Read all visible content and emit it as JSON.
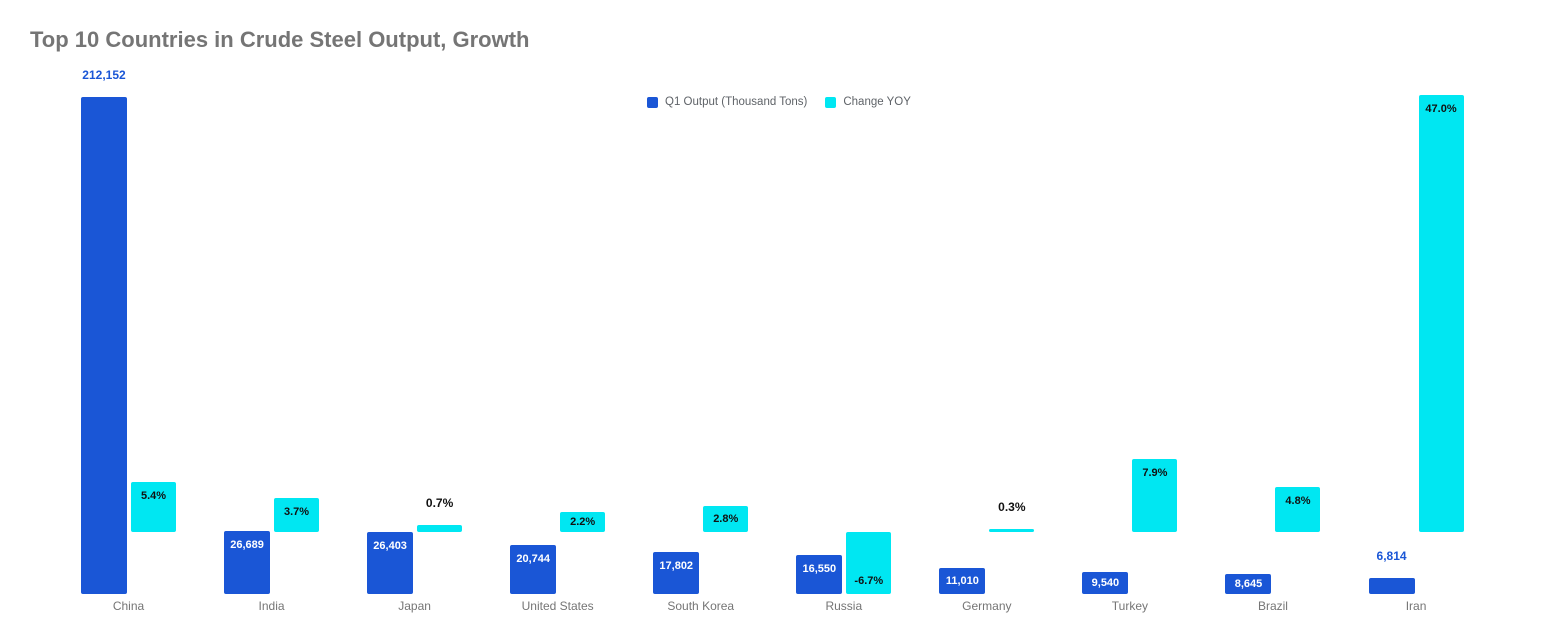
{
  "title": "Top 10 Countries in Crude Steel Output, Growth",
  "legend": {
    "items": [
      {
        "label": "Q1 Output (Thousand Tons)",
        "color": "#1a56d6"
      },
      {
        "label": "Change YOY",
        "color": "#00e7f2"
      }
    ]
  },
  "colors": {
    "series_q1_output": "#1a56d6",
    "series_change_yoy": "#00e7f2",
    "annotation_on_bar_light": "#ffffff",
    "annotation_dark": "#111111",
    "axis_label": "#757575",
    "title": "#757575",
    "legend_text": "#5f6368",
    "background": "#ffffff"
  },
  "chart_data": {
    "type": "bar",
    "title": "Top 10 Countries in Crude Steel Output, Growth",
    "categories": [
      "China",
      "India",
      "Japan",
      "United States",
      "South Korea",
      "Russia",
      "Germany",
      "Turkey",
      "Brazil",
      "Iran"
    ],
    "series": [
      {
        "name": "Q1 Output (Thousand Tons)",
        "color": "#1a56d6",
        "axis": "tons",
        "values": [
          212152,
          26689,
          26403,
          20744,
          17802,
          16550,
          11010,
          9540,
          8645,
          6814
        ],
        "labels": [
          "212,152",
          "26,689",
          "26,403",
          "20,744",
          "17,802",
          "16,550",
          "11,010",
          "9,540",
          "8,645",
          "6,814"
        ],
        "label_placement": [
          "above",
          "inside",
          "inside",
          "inside",
          "inside",
          "inside",
          "inside",
          "inside",
          "inside",
          "above"
        ]
      },
      {
        "name": "Change YOY",
        "color": "#00e7f2",
        "axis": "percent",
        "values": [
          5.4,
          3.7,
          0.7,
          2.2,
          2.8,
          -6.7,
          0.3,
          7.9,
          4.8,
          47.0
        ],
        "labels": [
          "5.4%",
          "3.7%",
          "0.7%",
          "2.2%",
          "2.8%",
          "-6.7%",
          "0.3%",
          "7.9%",
          "4.8%",
          "47.0%"
        ],
        "label_placement": [
          "inside",
          "inside",
          "above",
          "inside",
          "inside",
          "inside-bottom",
          "above",
          "inside",
          "inside",
          "inside"
        ]
      }
    ],
    "layout_hints": {
      "legend_position": "top-center",
      "grid": false,
      "y_axis_tick_labels_visible": false,
      "value_labels_visible": true,
      "tons_axis_max_value": 212152,
      "percent_axis_note": "secondary scale, zero level sits above the tons baseline; negative bars extend downward"
    }
  }
}
